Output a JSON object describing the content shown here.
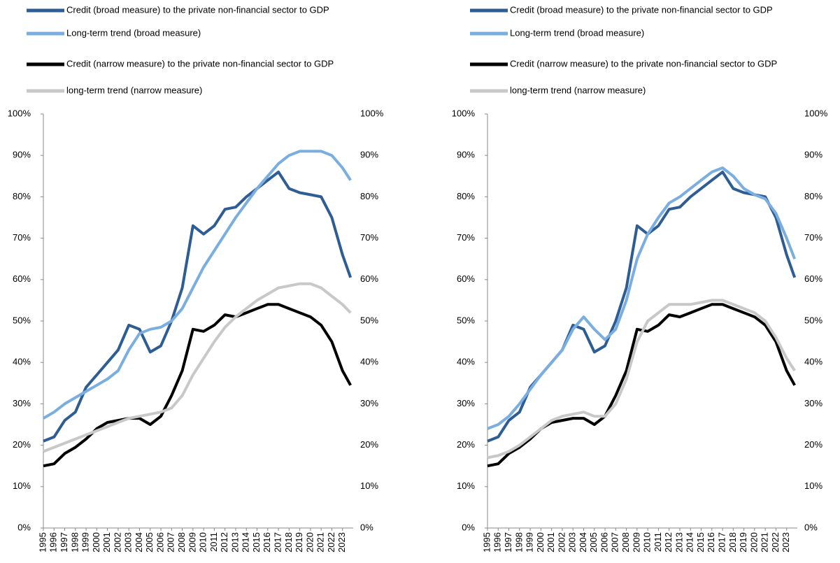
{
  "chart_data": [
    {
      "type": "line",
      "x": [
        1995,
        1996,
        1997,
        1998,
        1999,
        2000,
        2001,
        2002,
        2003,
        2004,
        2005,
        2006,
        2007,
        2008,
        2009,
        2010,
        2011,
        2012,
        2013,
        2014,
        2015,
        2016,
        2017,
        2018,
        2019,
        2020,
        2021,
        2022,
        2023,
        2023.75
      ],
      "xlim": [
        1995,
        2024
      ],
      "xticks": [
        1995,
        1996,
        1997,
        1998,
        1999,
        2000,
        2001,
        2002,
        2003,
        2004,
        2005,
        2006,
        2007,
        2008,
        2009,
        2010,
        2011,
        2012,
        2013,
        2014,
        2015,
        2016,
        2017,
        2018,
        2019,
        2020,
        2021,
        2022,
        2023
      ],
      "ylim": [
        0,
        100
      ],
      "yticks": [
        {
          "value": 0,
          "label": "0%"
        },
        {
          "value": 10,
          "label": "10%"
        },
        {
          "value": 20,
          "label": "20%"
        },
        {
          "value": 30,
          "label": "30%"
        },
        {
          "value": 40,
          "label": "40%"
        },
        {
          "value": 50,
          "label": "50%"
        },
        {
          "value": 60,
          "label": "60%"
        },
        {
          "value": 70,
          "label": "70%"
        },
        {
          "value": 80,
          "label": "80%"
        },
        {
          "value": 90,
          "label": "90%"
        },
        {
          "value": 100,
          "label": "100%"
        }
      ],
      "y2lim": [
        0,
        100
      ],
      "y2ticks": [
        {
          "value": 0,
          "label": "0%"
        },
        {
          "value": 10,
          "label": "10%"
        },
        {
          "value": 20,
          "label": "20%"
        },
        {
          "value": 30,
          "label": "30%"
        },
        {
          "value": 40,
          "label": "40%"
        },
        {
          "value": 50,
          "label": "50%"
        },
        {
          "value": 60,
          "label": "60%"
        },
        {
          "value": 70,
          "label": "70%"
        },
        {
          "value": 80,
          "label": "80%"
        },
        {
          "value": 90,
          "label": "90%"
        },
        {
          "value": 100,
          "label": "100%"
        }
      ],
      "series": [
        {
          "name": "Credit (broad measure) to the private non-financial sector to GDP",
          "color": "#2e5d94",
          "values": [
            21,
            22,
            26,
            28,
            34,
            37,
            40,
            43,
            49,
            48,
            42.5,
            44,
            50,
            58,
            73,
            71,
            73,
            77,
            77.5,
            80,
            82,
            84,
            86,
            82,
            81,
            80.5,
            80,
            75,
            66,
            60.5
          ]
        },
        {
          "name": "Long-term trend (broad measure)",
          "color": "#7aaee0",
          "values": [
            26.5,
            28,
            30,
            31.5,
            33,
            34.5,
            36,
            38,
            43,
            47,
            48,
            48.5,
            50,
            53,
            58,
            63,
            67,
            71,
            75,
            78.5,
            82,
            85,
            88,
            90,
            91,
            91,
            91,
            90,
            87,
            84
          ]
        },
        {
          "name": "Credit (narrow measure) to the private non-financial sector to GDP",
          "color": "#000000",
          "values": [
            15,
            15.5,
            18,
            19.5,
            21.5,
            24,
            25.5,
            26,
            26.5,
            26.5,
            25,
            27,
            32,
            38,
            48,
            47.5,
            49,
            51.5,
            51,
            52,
            53,
            54,
            54,
            53,
            52,
            51,
            49,
            45,
            38,
            34.5
          ]
        },
        {
          "name": "long-term trend (narrow measure)",
          "color": "#c8c8c8",
          "values": [
            18.5,
            19.5,
            20.5,
            21.5,
            22.5,
            23.5,
            24.5,
            25.5,
            26.5,
            27,
            27.5,
            28,
            29,
            32,
            37,
            41,
            45,
            48.5,
            51,
            53,
            55,
            56.5,
            58,
            58.5,
            59,
            59,
            58,
            56,
            54,
            52
          ]
        }
      ]
    },
    {
      "type": "line",
      "x": [
        1995,
        1996,
        1997,
        1998,
        1999,
        2000,
        2001,
        2002,
        2003,
        2004,
        2005,
        2006,
        2007,
        2008,
        2009,
        2010,
        2011,
        2012,
        2013,
        2014,
        2015,
        2016,
        2017,
        2018,
        2019,
        2020,
        2021,
        2022,
        2023,
        2023.75
      ],
      "xlim": [
        1995,
        2024
      ],
      "xticks": [
        1995,
        1996,
        1997,
        1998,
        1999,
        2000,
        2001,
        2002,
        2003,
        2004,
        2005,
        2006,
        2007,
        2008,
        2009,
        2010,
        2011,
        2012,
        2013,
        2014,
        2015,
        2016,
        2017,
        2018,
        2019,
        2020,
        2021,
        2022,
        2023
      ],
      "ylim": [
        0,
        100
      ],
      "yticks": [
        {
          "value": 0,
          "label": "0%"
        },
        {
          "value": 10,
          "label": "10%"
        },
        {
          "value": 20,
          "label": "20%"
        },
        {
          "value": 30,
          "label": "30%"
        },
        {
          "value": 40,
          "label": "40%"
        },
        {
          "value": 50,
          "label": "50%"
        },
        {
          "value": 60,
          "label": "60%"
        },
        {
          "value": 70,
          "label": "70%"
        },
        {
          "value": 80,
          "label": "80%"
        },
        {
          "value": 90,
          "label": "90%"
        },
        {
          "value": 100,
          "label": "100%"
        }
      ],
      "y2lim": [
        0,
        100
      ],
      "y2ticks": [
        {
          "value": 0,
          "label": "0%"
        },
        {
          "value": 10,
          "label": "10%"
        },
        {
          "value": 20,
          "label": "20%"
        },
        {
          "value": 30,
          "label": "30%"
        },
        {
          "value": 40,
          "label": "40%"
        },
        {
          "value": 50,
          "label": "50%"
        },
        {
          "value": 60,
          "label": "60%"
        },
        {
          "value": 70,
          "label": "70%"
        },
        {
          "value": 80,
          "label": "80%"
        },
        {
          "value": 90,
          "label": "90%"
        },
        {
          "value": 100,
          "label": "100%"
        }
      ],
      "series": [
        {
          "name": "Credit (broad measure) to the private non-financial sector to GDP",
          "color": "#2e5d94",
          "values": [
            21,
            22,
            26,
            28,
            34,
            37,
            40,
            43,
            49,
            48,
            42.5,
            44,
            50,
            58,
            73,
            71,
            73,
            77,
            77.5,
            80,
            82,
            84,
            86,
            82,
            81,
            80.5,
            80,
            75,
            66,
            60.5
          ]
        },
        {
          "name": "Long-term trend (broad measure)",
          "color": "#7aaee0",
          "values": [
            24,
            25,
            27,
            30,
            33.5,
            37,
            40,
            43,
            48,
            51,
            48,
            45.5,
            48,
            55,
            65,
            71,
            75,
            78.5,
            80,
            82,
            84,
            86,
            87,
            85,
            82,
            80.5,
            79.5,
            76,
            70,
            65
          ]
        },
        {
          "name": "Credit (narrow measure) to the private non-financial sector to GDP",
          "color": "#000000",
          "values": [
            15,
            15.5,
            18,
            19.5,
            21.5,
            24,
            25.5,
            26,
            26.5,
            26.5,
            25,
            27,
            32,
            38,
            48,
            47.5,
            49,
            51.5,
            51,
            52,
            53,
            54,
            54,
            53,
            52,
            51,
            49,
            45,
            38,
            34.5
          ]
        },
        {
          "name": "long-term trend (narrow measure)",
          "color": "#c8c8c8",
          "values": [
            17,
            17.5,
            18.5,
            20,
            22,
            24,
            26,
            27,
            27.5,
            28,
            27,
            27,
            30,
            36,
            45,
            50,
            52,
            54,
            54,
            54,
            54.5,
            55,
            55,
            54,
            53,
            52,
            50,
            46,
            41,
            38
          ]
        }
      ]
    }
  ]
}
